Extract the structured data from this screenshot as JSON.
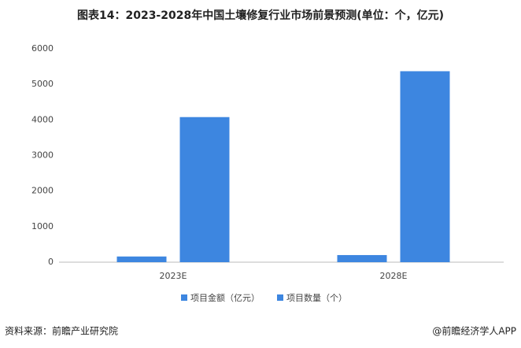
{
  "chart_data": {
    "type": "bar",
    "title": "图表14：2023-2028年中国土壤修复行业市场前景预测(单位：个，亿元)",
    "categories": [
      "2023E",
      "2028E"
    ],
    "series": [
      {
        "name": "项目金额（亿元）",
        "color": "#3d86e0",
        "values": [
          160,
          200
        ]
      },
      {
        "name": "项目数量（个）",
        "color": "#3d86e0",
        "values": [
          4080,
          5370
        ]
      }
    ],
    "ylim": [
      0,
      6000
    ],
    "yticks": [
      0,
      1000,
      2000,
      3000,
      4000,
      5000,
      6000
    ],
    "grid": false,
    "legend": "bottom",
    "source": "资料来源：前瞻产业研究院",
    "credit": "@前瞻经济学人APP"
  }
}
